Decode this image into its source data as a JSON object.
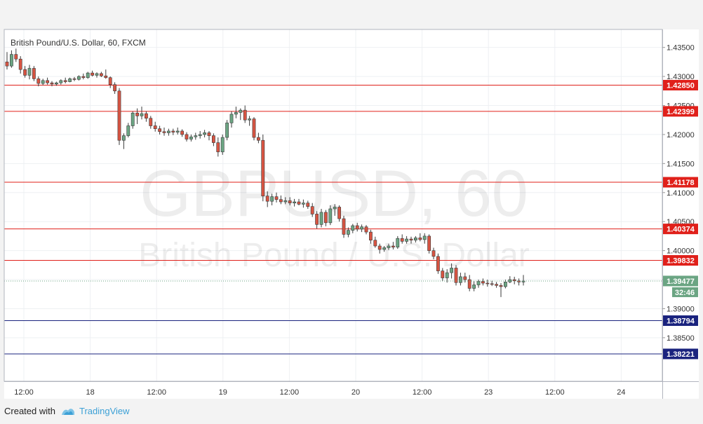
{
  "credit": {
    "prefix": "Created with",
    "brand": "TradingView"
  },
  "chart_data": {
    "type": "candlestick",
    "title": "British Pound/U.S. Dollar, 60, FXCM",
    "watermark": {
      "symbol": "GBPUSD, 60",
      "name": "British Pound / U.S. Dollar"
    },
    "colors": {
      "up": "#6ba583",
      "down": "#d75442",
      "resistance": "#e0201a",
      "support": "#1a237e",
      "last": "#6ba583"
    },
    "ylim": [
      1.3775,
      1.4381
    ],
    "y_ticks": [
      "1.43500",
      "1.43000",
      "1.42500",
      "1.42000",
      "1.41500",
      "1.41000",
      "1.40500",
      "1.40000",
      "1.39500",
      "1.39000",
      "1.38500"
    ],
    "x_ticks": [
      "12:00",
      "18",
      "12:00",
      "19",
      "12:00",
      "20",
      "12:00",
      "23",
      "12:00",
      "24"
    ],
    "hlines": [
      {
        "value": 1.4285,
        "label": "1.42850",
        "kind": "resistance"
      },
      {
        "value": 1.42399,
        "label": "1.42399",
        "kind": "resistance"
      },
      {
        "value": 1.41178,
        "label": "1.41178",
        "kind": "resistance"
      },
      {
        "value": 1.40374,
        "label": "1.40374",
        "kind": "resistance"
      },
      {
        "value": 1.39832,
        "label": "1.39832",
        "kind": "resistance"
      },
      {
        "value": 1.38794,
        "label": "1.38794",
        "kind": "support"
      },
      {
        "value": 1.38221,
        "label": "1.38221",
        "kind": "support"
      }
    ],
    "last_price": {
      "value": 1.39477,
      "label": "1.39477",
      "countdown": "32:46"
    },
    "ohlc": [
      [
        1.4325,
        1.4342,
        1.4312,
        1.4318
      ],
      [
        1.4318,
        1.4345,
        1.4315,
        1.4338
      ],
      [
        1.4338,
        1.4348,
        1.4325,
        1.433
      ],
      [
        1.433,
        1.4335,
        1.4305,
        1.4312
      ],
      [
        1.4312,
        1.4318,
        1.4298,
        1.4302
      ],
      [
        1.4302,
        1.432,
        1.4295,
        1.4314
      ],
      [
        1.4314,
        1.4318,
        1.4292,
        1.4296
      ],
      [
        1.4296,
        1.43,
        1.4283,
        1.4288
      ],
      [
        1.4288,
        1.4296,
        1.4285,
        1.4293
      ],
      [
        1.4293,
        1.4298,
        1.4286,
        1.4289
      ],
      [
        1.4289,
        1.4292,
        1.4283,
        1.4287
      ],
      [
        1.4287,
        1.4291,
        1.4284,
        1.4289
      ],
      [
        1.4289,
        1.4295,
        1.4286,
        1.4293
      ],
      [
        1.4293,
        1.4298,
        1.4288,
        1.4291
      ],
      [
        1.4291,
        1.4298,
        1.429,
        1.4296
      ],
      [
        1.4296,
        1.4299,
        1.4292,
        1.4295
      ],
      [
        1.4295,
        1.4302,
        1.4293,
        1.43
      ],
      [
        1.43,
        1.4305,
        1.4295,
        1.4298
      ],
      [
        1.4298,
        1.4308,
        1.4296,
        1.4306
      ],
      [
        1.4306,
        1.431,
        1.43,
        1.4302
      ],
      [
        1.4302,
        1.4307,
        1.4298,
        1.4305
      ],
      [
        1.4305,
        1.4308,
        1.4299,
        1.4301
      ],
      [
        1.4301,
        1.4312,
        1.4296,
        1.4298
      ],
      [
        1.4298,
        1.43,
        1.428,
        1.4286
      ],
      [
        1.4286,
        1.429,
        1.427,
        1.4275
      ],
      [
        1.4275,
        1.428,
        1.4182,
        1.419
      ],
      [
        1.419,
        1.4202,
        1.4175,
        1.4198
      ],
      [
        1.4198,
        1.422,
        1.4195,
        1.4215
      ],
      [
        1.4215,
        1.424,
        1.421,
        1.4237
      ],
      [
        1.4237,
        1.4245,
        1.4218,
        1.4232
      ],
      [
        1.4232,
        1.4248,
        1.4226,
        1.4236
      ],
      [
        1.4236,
        1.424,
        1.4222,
        1.4228
      ],
      [
        1.4228,
        1.4232,
        1.421,
        1.4215
      ],
      [
        1.4215,
        1.4222,
        1.4205,
        1.421
      ],
      [
        1.421,
        1.4215,
        1.42,
        1.4205
      ],
      [
        1.4205,
        1.4212,
        1.4198,
        1.4203
      ],
      [
        1.4203,
        1.421,
        1.4198,
        1.4206
      ],
      [
        1.4206,
        1.421,
        1.4199,
        1.4204
      ],
      [
        1.4204,
        1.4212,
        1.42,
        1.4206
      ],
      [
        1.4206,
        1.4209,
        1.4196,
        1.42
      ],
      [
        1.42,
        1.4204,
        1.4188,
        1.4192
      ],
      [
        1.4192,
        1.42,
        1.4188,
        1.4196
      ],
      [
        1.4196,
        1.4203,
        1.4191,
        1.4198
      ],
      [
        1.4198,
        1.4206,
        1.4193,
        1.42
      ],
      [
        1.42,
        1.4208,
        1.4195,
        1.4203
      ],
      [
        1.4203,
        1.4206,
        1.419,
        1.4198
      ],
      [
        1.4198,
        1.4202,
        1.418,
        1.4186
      ],
      [
        1.4186,
        1.4195,
        1.4162,
        1.417
      ],
      [
        1.417,
        1.42,
        1.4165,
        1.4195
      ],
      [
        1.4195,
        1.4225,
        1.419,
        1.422
      ],
      [
        1.422,
        1.424,
        1.4212,
        1.4235
      ],
      [
        1.4235,
        1.4248,
        1.4228,
        1.4238
      ],
      [
        1.4238,
        1.4245,
        1.4225,
        1.4242
      ],
      [
        1.4242,
        1.425,
        1.422,
        1.4225
      ],
      [
        1.4225,
        1.4232,
        1.4215,
        1.4227
      ],
      [
        1.4227,
        1.423,
        1.419,
        1.4195
      ],
      [
        1.4195,
        1.4203,
        1.4185,
        1.419
      ],
      [
        1.419,
        1.42,
        1.4085,
        1.4094
      ],
      [
        1.4094,
        1.4102,
        1.4075,
        1.4085
      ],
      [
        1.4085,
        1.4098,
        1.4078,
        1.4093
      ],
      [
        1.4093,
        1.41,
        1.4083,
        1.4088
      ],
      [
        1.4088,
        1.4095,
        1.408,
        1.4084
      ],
      [
        1.4084,
        1.4092,
        1.408,
        1.4086
      ],
      [
        1.4086,
        1.4092,
        1.4078,
        1.4082
      ],
      [
        1.4082,
        1.4089,
        1.4076,
        1.4084
      ],
      [
        1.4084,
        1.4089,
        1.4078,
        1.408
      ],
      [
        1.408,
        1.4088,
        1.4074,
        1.4082
      ],
      [
        1.4082,
        1.4086,
        1.4072,
        1.4076
      ],
      [
        1.4076,
        1.4082,
        1.4058,
        1.4063
      ],
      [
        1.4063,
        1.4068,
        1.4038,
        1.4045
      ],
      [
        1.4045,
        1.4072,
        1.404,
        1.4066
      ],
      [
        1.4066,
        1.407,
        1.4042,
        1.4048
      ],
      [
        1.4048,
        1.4078,
        1.4044,
        1.4072
      ],
      [
        1.4072,
        1.408,
        1.406,
        1.4075
      ],
      [
        1.4075,
        1.4078,
        1.405,
        1.4055
      ],
      [
        1.4055,
        1.406,
        1.4022,
        1.4028
      ],
      [
        1.4028,
        1.404,
        1.4023,
        1.4035
      ],
      [
        1.4035,
        1.4046,
        1.403,
        1.4043
      ],
      [
        1.4043,
        1.4048,
        1.4033,
        1.4037
      ],
      [
        1.4037,
        1.4045,
        1.4032,
        1.4041
      ],
      [
        1.4041,
        1.4044,
        1.4028,
        1.4032
      ],
      [
        1.4032,
        1.4036,
        1.4012,
        1.4018
      ],
      [
        1.4018,
        1.4024,
        1.4005,
        1.4008
      ],
      [
        1.4008,
        1.4012,
        1.3995,
        1.4002
      ],
      [
        1.4002,
        1.4008,
        1.3998,
        1.4005
      ],
      [
        1.4005,
        1.4012,
        1.4001,
        1.4008
      ],
      [
        1.4008,
        1.4015,
        1.4002,
        1.4006
      ],
      [
        1.4006,
        1.4025,
        1.4003,
        1.4021
      ],
      [
        1.4021,
        1.4028,
        1.4012,
        1.4016
      ],
      [
        1.4016,
        1.4025,
        1.4012,
        1.402
      ],
      [
        1.402,
        1.4024,
        1.4012,
        1.4018
      ],
      [
        1.4018,
        1.4025,
        1.4014,
        1.4022
      ],
      [
        1.4022,
        1.403,
        1.4016,
        1.4019
      ],
      [
        1.4019,
        1.403,
        1.4012,
        1.4025
      ],
      [
        1.4025,
        1.4028,
        1.3995,
        1.4
      ],
      [
        1.4,
        1.4005,
        1.3985,
        1.399
      ],
      [
        1.399,
        1.3995,
        1.396,
        1.3965
      ],
      [
        1.3965,
        1.397,
        1.3948,
        1.3953
      ],
      [
        1.3953,
        1.3968,
        1.3945,
        1.3962
      ],
      [
        1.3962,
        1.3978,
        1.3952,
        1.397
      ],
      [
        1.397,
        1.3975,
        1.394,
        1.3945
      ],
      [
        1.3945,
        1.3962,
        1.394,
        1.3955
      ],
      [
        1.3955,
        1.3962,
        1.3945,
        1.395
      ],
      [
        1.395,
        1.3958,
        1.393,
        1.3935
      ],
      [
        1.3935,
        1.3948,
        1.393,
        1.3941
      ],
      [
        1.3941,
        1.395,
        1.3936,
        1.3947
      ],
      [
        1.3947,
        1.3952,
        1.394,
        1.3944
      ],
      [
        1.3944,
        1.395,
        1.3938,
        1.3943
      ],
      [
        1.3943,
        1.3948,
        1.3939,
        1.3942
      ],
      [
        1.3942,
        1.3946,
        1.3936,
        1.394
      ],
      [
        1.394,
        1.3944,
        1.392,
        1.3938
      ],
      [
        1.3938,
        1.395,
        1.3935,
        1.3946
      ],
      [
        1.3946,
        1.3956,
        1.3944,
        1.395
      ],
      [
        1.395,
        1.3955,
        1.3942,
        1.3948
      ],
      [
        1.3948,
        1.3952,
        1.394,
        1.3946
      ],
      [
        1.3946,
        1.3958,
        1.394,
        1.39477
      ]
    ]
  }
}
